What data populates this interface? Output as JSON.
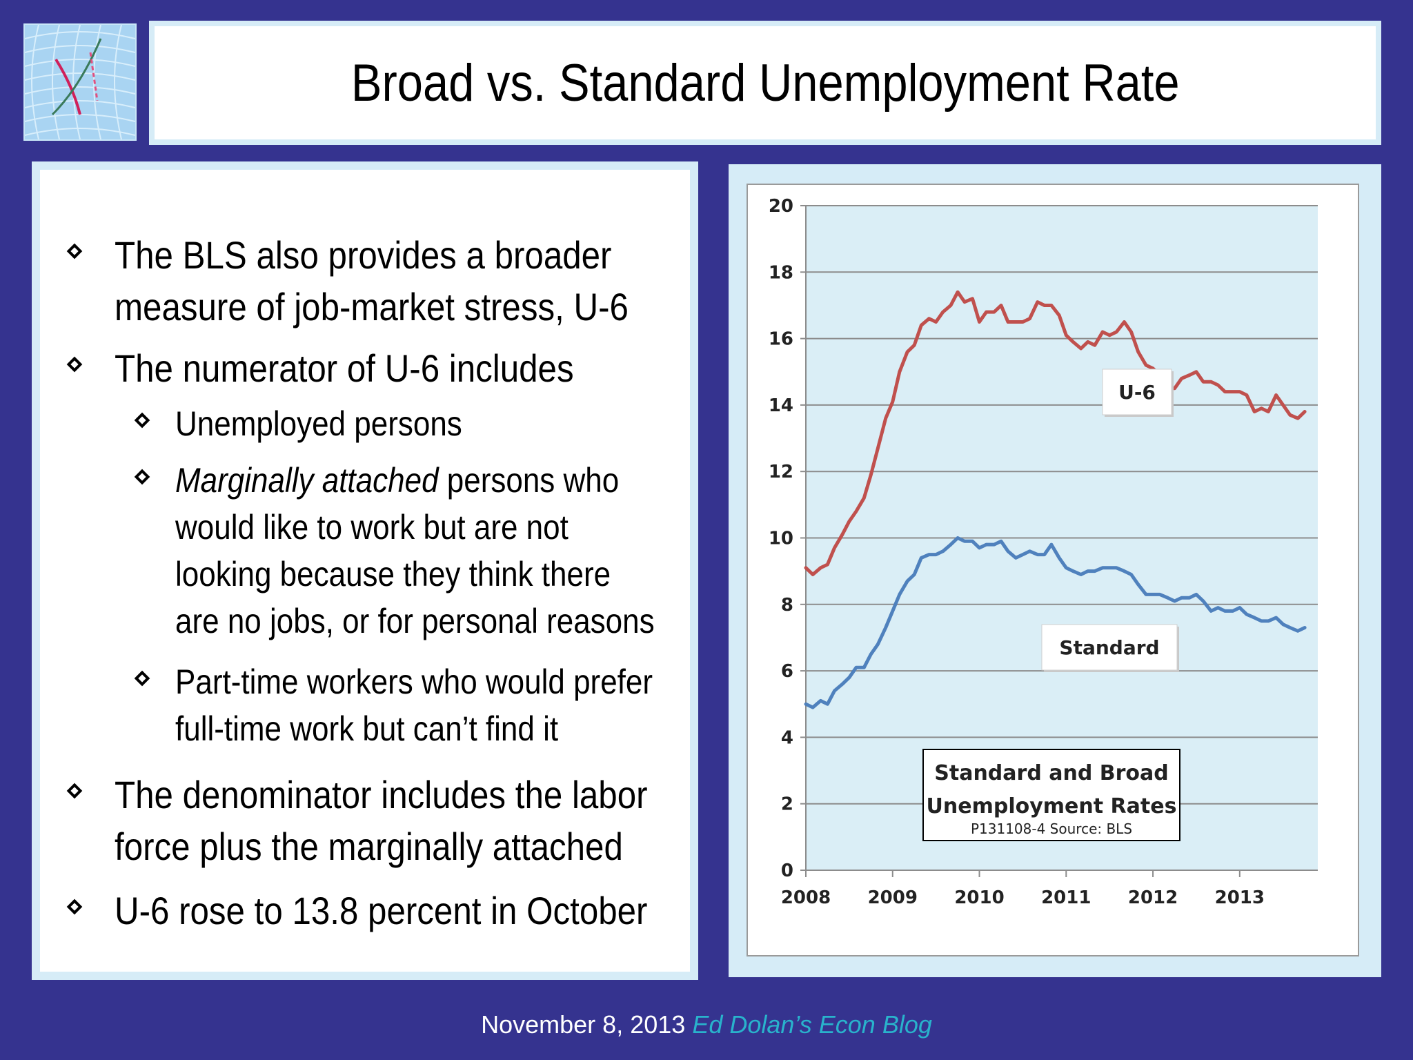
{
  "slide": {
    "title": "Broad vs. Standard Unemployment Rate",
    "bullets": [
      {
        "level": 1,
        "lines": [
          "The BLS also provides a broader",
          "measure of job-market stress, U-6"
        ]
      },
      {
        "level": 1,
        "lines": [
          "The numerator of U-6 includes"
        ]
      },
      {
        "level": 2,
        "lines": [
          "Unemployed persons"
        ]
      },
      {
        "level": 2,
        "italic_prefix": "Marginally attached",
        "lines": [
          " persons who",
          "would like to work but are not",
          "looking because they think there",
          "are no jobs, or for personal reasons"
        ]
      },
      {
        "level": 2,
        "lines": [
          "Part-time workers who would prefer",
          "full-time work but can’t find it"
        ]
      },
      {
        "level": 1,
        "lines": [
          "The denominator includes the labor",
          "force plus the marginally attached"
        ]
      },
      {
        "level": 1,
        "lines": [
          "U-6 rose to 13.8 percent in October"
        ]
      }
    ]
  },
  "footer": {
    "date": "November 8, 2013",
    "blog": "Ed Dolan’s Econ Blog"
  },
  "colors": {
    "background": "#35338f",
    "u6_line": "#c0504d",
    "standard_line": "#4f81bd",
    "plot_background": "#daeef6",
    "blog_link": "#29b3cc"
  },
  "chart_data": {
    "type": "line",
    "title": "",
    "xlabel": "",
    "ylabel": "",
    "ylim": [
      0,
      20
    ],
    "yticks": [
      0,
      2,
      4,
      6,
      8,
      10,
      12,
      14,
      16,
      18,
      20
    ],
    "xlim": [
      2008,
      2013.9
    ],
    "xticks": [
      2008,
      2009,
      2010,
      2011,
      2012,
      2013
    ],
    "grid": "horizontal",
    "series": [
      {
        "name": "U-6",
        "x": [
          2008.0,
          2008.08,
          2008.17,
          2008.25,
          2008.33,
          2008.42,
          2008.5,
          2008.58,
          2008.67,
          2008.75,
          2008.83,
          2008.92,
          2009.0,
          2009.08,
          2009.17,
          2009.25,
          2009.33,
          2009.42,
          2009.5,
          2009.58,
          2009.67,
          2009.75,
          2009.83,
          2009.92,
          2010.0,
          2010.08,
          2010.17,
          2010.25,
          2010.33,
          2010.42,
          2010.5,
          2010.58,
          2010.67,
          2010.75,
          2010.83,
          2010.92,
          2011.0,
          2011.08,
          2011.17,
          2011.25,
          2011.33,
          2011.42,
          2011.5,
          2011.58,
          2011.67,
          2011.75,
          2011.83,
          2011.92,
          2012.0,
          2012.08,
          2012.17,
          2012.25,
          2012.33,
          2012.42,
          2012.5,
          2012.58,
          2012.67,
          2012.75,
          2012.83,
          2012.92,
          2013.0,
          2013.08,
          2013.17,
          2013.25,
          2013.33,
          2013.42,
          2013.5,
          2013.58,
          2013.67,
          2013.75
        ],
        "values": [
          9.1,
          8.9,
          9.1,
          9.2,
          9.7,
          10.1,
          10.5,
          10.8,
          11.2,
          11.9,
          12.7,
          13.6,
          14.1,
          15.0,
          15.6,
          15.8,
          16.4,
          16.6,
          16.5,
          16.8,
          17.0,
          17.4,
          17.1,
          17.2,
          16.5,
          16.8,
          16.8,
          17.0,
          16.5,
          16.5,
          16.5,
          16.6,
          17.1,
          17.0,
          17.0,
          16.7,
          16.1,
          15.9,
          15.7,
          15.9,
          15.8,
          16.2,
          16.1,
          16.2,
          16.5,
          16.2,
          15.6,
          15.2,
          15.1,
          14.9,
          14.5,
          14.5,
          14.8,
          14.9,
          15.0,
          14.7,
          14.7,
          14.6,
          14.4,
          14.4,
          14.4,
          14.3,
          13.8,
          13.9,
          13.8,
          14.3,
          14.0,
          13.7,
          13.6,
          13.8
        ]
      },
      {
        "name": "Standard",
        "x": [
          2008.0,
          2008.08,
          2008.17,
          2008.25,
          2008.33,
          2008.42,
          2008.5,
          2008.58,
          2008.67,
          2008.75,
          2008.83,
          2008.92,
          2009.0,
          2009.08,
          2009.17,
          2009.25,
          2009.33,
          2009.42,
          2009.5,
          2009.58,
          2009.67,
          2009.75,
          2009.83,
          2009.92,
          2010.0,
          2010.08,
          2010.17,
          2010.25,
          2010.33,
          2010.42,
          2010.5,
          2010.58,
          2010.67,
          2010.75,
          2010.83,
          2010.92,
          2011.0,
          2011.08,
          2011.17,
          2011.25,
          2011.33,
          2011.42,
          2011.5,
          2011.58,
          2011.67,
          2011.75,
          2011.83,
          2011.92,
          2012.0,
          2012.08,
          2012.17,
          2012.25,
          2012.33,
          2012.42,
          2012.5,
          2012.58,
          2012.67,
          2012.75,
          2012.83,
          2012.92,
          2013.0,
          2013.08,
          2013.17,
          2013.25,
          2013.33,
          2013.42,
          2013.5,
          2013.58,
          2013.67,
          2013.75
        ],
        "values": [
          5.0,
          4.9,
          5.1,
          5.0,
          5.4,
          5.6,
          5.8,
          6.1,
          6.1,
          6.5,
          6.8,
          7.3,
          7.8,
          8.3,
          8.7,
          8.9,
          9.4,
          9.5,
          9.5,
          9.6,
          9.8,
          10.0,
          9.9,
          9.9,
          9.7,
          9.8,
          9.8,
          9.9,
          9.6,
          9.4,
          9.5,
          9.6,
          9.5,
          9.5,
          9.8,
          9.4,
          9.1,
          9.0,
          8.9,
          9.0,
          9.0,
          9.1,
          9.1,
          9.1,
          9.0,
          8.9,
          8.6,
          8.3,
          8.3,
          8.3,
          8.2,
          8.1,
          8.2,
          8.2,
          8.3,
          8.1,
          7.8,
          7.9,
          7.8,
          7.8,
          7.9,
          7.7,
          7.6,
          7.5,
          7.5,
          7.6,
          7.4,
          7.3,
          7.2,
          7.3
        ]
      }
    ],
    "labels": {
      "u6": "U-6",
      "standard": "Standard",
      "box_line1": "Standard and Broad",
      "box_line2": "Unemployment Rates",
      "box_source": "P131108-4 Source: BLS"
    }
  }
}
